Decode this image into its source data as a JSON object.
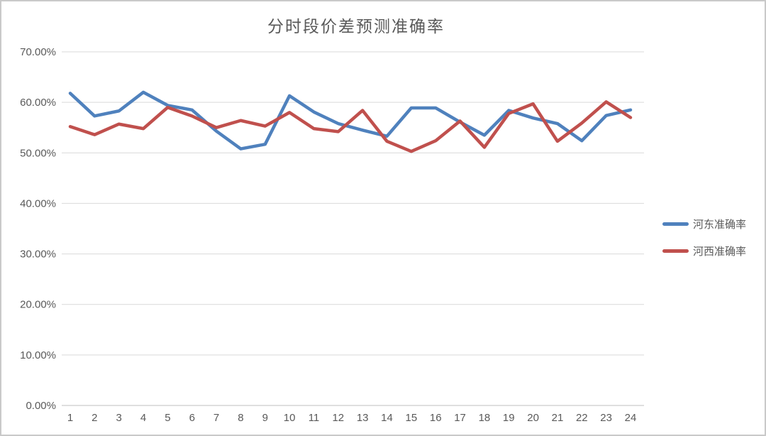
{
  "chart_data": {
    "type": "line",
    "title": "分时段价差预测准确率",
    "categories": [
      "1",
      "2",
      "3",
      "4",
      "5",
      "6",
      "7",
      "8",
      "9",
      "10",
      "11",
      "12",
      "13",
      "14",
      "15",
      "16",
      "17",
      "18",
      "19",
      "20",
      "21",
      "22",
      "23",
      "24"
    ],
    "series": [
      {
        "name": "河东准确率",
        "color": "#4F81BD",
        "values": [
          61.8,
          57.3,
          58.3,
          62.0,
          59.4,
          58.5,
          54.3,
          50.8,
          51.7,
          61.3,
          58.1,
          55.8,
          54.5,
          53.3,
          58.9,
          58.9,
          56.1,
          53.5,
          58.4,
          56.9,
          55.8,
          52.4,
          57.4,
          58.5
        ]
      },
      {
        "name": "河西准确率",
        "color": "#C0504D",
        "values": [
          55.2,
          53.6,
          55.7,
          54.8,
          59.0,
          57.3,
          55.0,
          56.4,
          55.3,
          58.0,
          54.8,
          54.2,
          58.4,
          52.3,
          50.3,
          52.4,
          56.3,
          51.1,
          57.8,
          59.7,
          52.3,
          55.9,
          60.1,
          57.0
        ]
      }
    ],
    "xlabel": "",
    "ylabel": "",
    "ylim": [
      0,
      70
    ],
    "ytick_step": 10,
    "yticklabels": [
      "0.00%",
      "10.00%",
      "20.00%",
      "30.00%",
      "40.00%",
      "50.00%",
      "60.00%",
      "70.00%"
    ],
    "grid": true,
    "legend_position": "right",
    "gridline_color": "#d9d9d9",
    "axis_line_color": "#bfbfbf",
    "tick_label_color": "#595959",
    "title_color": "#595959"
  }
}
